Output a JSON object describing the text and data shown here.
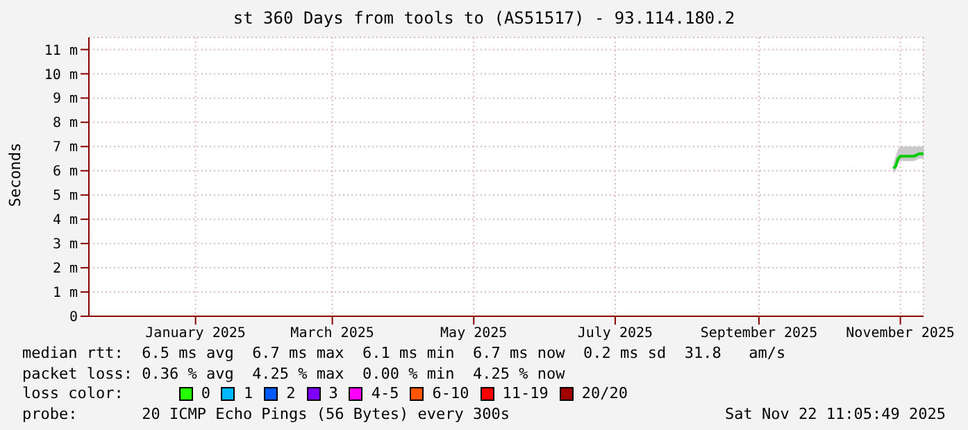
{
  "chart_data": {
    "type": "line",
    "title": "st 360 Days from tools to (AS51517) - 93.114.180.2",
    "ylabel": "Seconds",
    "x": [
      "2025-11-09",
      "2025-11-10",
      "2025-11-11",
      "2025-11-12",
      "2025-11-14",
      "2025-11-16",
      "2025-11-18",
      "2025-11-20",
      "2025-11-22"
    ],
    "series": [
      {
        "color": "#00cc00",
        "values": [
          6.1,
          6.2,
          6.5,
          6.6,
          6.6,
          6.6,
          6.6,
          6.7,
          6.7
        ],
        "lower": [
          5.9,
          6.0,
          6.3,
          6.4,
          6.4,
          6.4,
          6.4,
          6.5,
          6.5
        ],
        "upper": [
          6.3,
          6.6,
          6.9,
          7.0,
          7.0,
          7.0,
          7.0,
          7.0,
          7.0
        ]
      }
    ],
    "xlim": [
      "2024-11-27",
      "2025-11-22"
    ],
    "xticks": [
      {
        "value": "2025-01-12",
        "label": "January 2025"
      },
      {
        "value": "2025-03-12",
        "label": "March 2025"
      },
      {
        "value": "2025-05-12",
        "label": "May 2025"
      },
      {
        "value": "2025-07-12",
        "label": "July 2025"
      },
      {
        "value": "2025-09-12",
        "label": "September 2025"
      },
      {
        "value": "2025-11-12",
        "label": "November 2025"
      }
    ],
    "ylim": [
      0,
      11.5
    ],
    "yticks": [
      0,
      {
        "value": 1,
        "label": "1 m"
      },
      {
        "value": 2,
        "label": "2 m"
      },
      {
        "value": 3,
        "label": "3 m"
      },
      {
        "value": 4,
        "label": "4 m"
      },
      {
        "value": 5,
        "label": "5 m"
      },
      {
        "value": 6,
        "label": "6 m"
      },
      {
        "value": 7,
        "label": "7 m"
      },
      {
        "value": 8,
        "label": "8 m"
      },
      {
        "value": 9,
        "label": "9 m"
      },
      {
        "value": 10,
        "label": "10 m"
      },
      {
        "value": 11,
        "label": "11 m"
      }
    ],
    "grid": true,
    "legend": false,
    "marker": "none",
    "line_style": "solid",
    "annotations": [
      "median rtt:  6.5 ms avg  6.7 ms max  6.1 ms min  6.7 ms now  0.2 ms sd  31.8   am/s",
      "packet loss: 0.36 % avg  4.25 % max  0.00 % min  4.25 % now",
      "loss color:",
      "0",
      "1",
      "2",
      "3",
      "4-5",
      "6-10",
      "11-19",
      "20/20",
      "probe:       20 ICMP Echo Pings (56 Bytes) every 300s",
      "Sat Nov 22 11:05:49 2025"
    ]
  }
}
